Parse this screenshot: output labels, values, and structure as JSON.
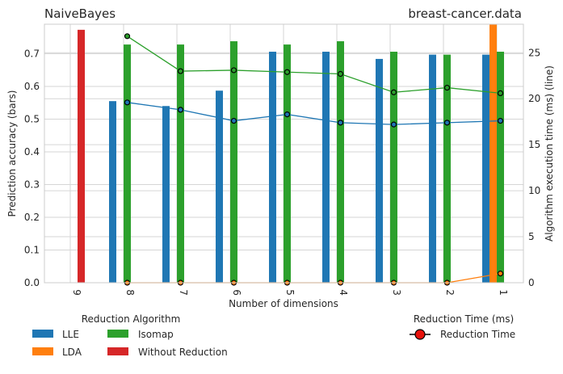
{
  "chart_data": {
    "type": "bar",
    "title_left": "NaiveBayes",
    "title_right": "breast-cancer.data",
    "xlabel": "Number of dimensions",
    "ylabel_left": "Prediction accuracy (bars)",
    "ylabel_right": "Algorithm execution time (ms) (line)",
    "categories": [
      "9",
      "8",
      "7",
      "6",
      "5",
      "4",
      "3",
      "2",
      "1"
    ],
    "ylim_left": [
      0,
      0.79
    ],
    "ylim_right": [
      0,
      28.1
    ],
    "yticks_left": [
      "0.0",
      "0.1",
      "0.2",
      "0.3",
      "0.4",
      "0.5",
      "0.6",
      "0.7"
    ],
    "yticks_right": [
      "0",
      "5",
      "10",
      "15",
      "20",
      "25"
    ],
    "grid": true,
    "bar_series": [
      {
        "name": "LLE",
        "color": "#1f77b4",
        "values": [
          null,
          0.555,
          0.54,
          0.587,
          0.706,
          0.706,
          0.684,
          0.697,
          0.697
        ]
      },
      {
        "name": "LDA",
        "color": "#ff7f0e",
        "values": [
          null,
          null,
          null,
          null,
          null,
          null,
          null,
          null,
          0.79
        ]
      },
      {
        "name": "Isomap",
        "color": "#2ca02c",
        "values": [
          null,
          0.728,
          0.728,
          0.738,
          0.728,
          0.738,
          0.706,
          0.697,
          0.706
        ]
      },
      {
        "name": "Without Reduction",
        "color": "#d62728",
        "values": [
          0.773,
          null,
          null,
          null,
          null,
          null,
          null,
          null,
          null
        ]
      }
    ],
    "line_series": [
      {
        "name": "LLE",
        "color": "#1f77b4",
        "values": [
          null,
          19.6,
          18.8,
          17.6,
          18.3,
          17.4,
          17.2,
          17.4,
          17.6
        ]
      },
      {
        "name": "LDA",
        "color": "#ff7f0e",
        "values": [
          null,
          0,
          0,
          0,
          0,
          0,
          0,
          0,
          1.0
        ]
      },
      {
        "name": "Isomap",
        "color": "#2ca02c",
        "values": [
          null,
          26.8,
          23.0,
          23.1,
          22.9,
          22.7,
          20.7,
          21.2,
          20.6
        ]
      }
    ],
    "legend_bars": {
      "title": "Reduction Algorithm",
      "items": [
        {
          "label": "LLE",
          "color": "#1f77b4"
        },
        {
          "label": "Isomap",
          "color": "#2ca02c"
        },
        {
          "label": "LDA",
          "color": "#ff7f0e"
        },
        {
          "label": "Without Reduction",
          "color": "#d62728"
        }
      ]
    },
    "legend_line": {
      "title": "Reduction Time (ms)",
      "label": "Reduction Time",
      "marker_color": "#e8120c"
    }
  }
}
